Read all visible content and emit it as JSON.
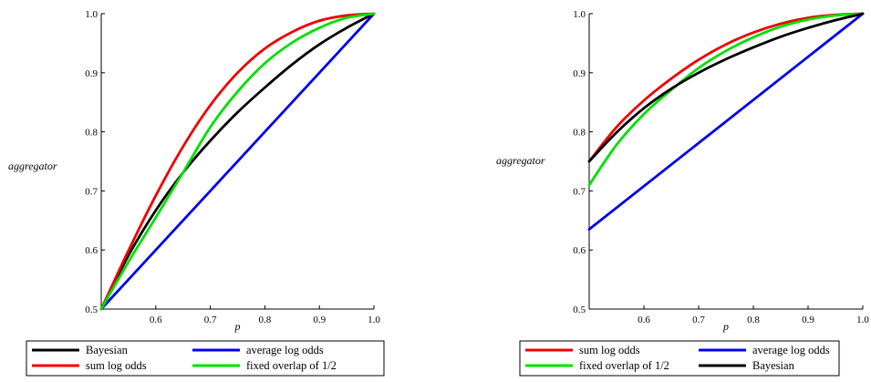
{
  "chart_data": [
    {
      "type": "line",
      "title": "",
      "xlabel": "p",
      "ylabel": "aggregator",
      "xlim": [
        0.5,
        1.0
      ],
      "ylim": [
        0.5,
        1.0
      ],
      "x_ticks": [
        "0.6",
        "0.7",
        "0.8",
        "0.9",
        "1.0"
      ],
      "y_ticks": [
        "0.5",
        "0.6",
        "0.7",
        "0.8",
        "0.9",
        "1.0"
      ],
      "grid": false,
      "legend_position": "bottom",
      "series": [
        {
          "name": "Bayesian",
          "color": "#000000",
          "x": [
            0.5,
            0.55,
            0.6,
            0.65,
            0.7,
            0.75,
            0.8,
            0.85,
            0.9,
            0.95,
            1.0
          ],
          "y": [
            0.5,
            0.591,
            0.667,
            0.731,
            0.785,
            0.833,
            0.875,
            0.914,
            0.948,
            0.976,
            1.0
          ]
        },
        {
          "name": "average log odds",
          "color": "#0000ee",
          "x": [
            0.5,
            0.6,
            0.7,
            0.8,
            0.9,
            1.0
          ],
          "y": [
            0.5,
            0.6,
            0.7,
            0.8,
            0.9,
            1.0
          ]
        },
        {
          "name": "sum log odds",
          "color": "#ee0000",
          "x": [
            0.5,
            0.55,
            0.6,
            0.65,
            0.7,
            0.75,
            0.8,
            0.85,
            0.9,
            0.95,
            1.0
          ],
          "y": [
            0.5,
            0.599,
            0.692,
            0.775,
            0.845,
            0.9,
            0.941,
            0.969,
            0.988,
            0.997,
            1.0
          ]
        },
        {
          "name": "fixed overlap of 1/2",
          "color": "#00e000",
          "x": [
            0.5,
            0.55,
            0.6,
            0.65,
            0.7,
            0.75,
            0.8,
            0.85,
            0.9,
            0.95,
            1.0
          ],
          "y": [
            0.5,
            0.58,
            0.655,
            0.731,
            0.808,
            0.868,
            0.916,
            0.951,
            0.976,
            0.993,
            1.0
          ]
        }
      ],
      "legend": [
        [
          "Bayesian",
          "average log odds"
        ],
        [
          "sum log odds",
          "fixed overlap of 1/2"
        ]
      ]
    },
    {
      "type": "line",
      "title": "",
      "xlabel": "p",
      "ylabel": "aggregator",
      "xlim": [
        0.5,
        1.0
      ],
      "ylim": [
        0.5,
        1.0
      ],
      "x_ticks": [
        "0.6",
        "0.7",
        "0.8",
        "0.9",
        "1.0"
      ],
      "y_ticks": [
        "0.5",
        "0.6",
        "0.7",
        "0.8",
        "0.9",
        "1.0"
      ],
      "grid": false,
      "legend_position": "bottom",
      "series": [
        {
          "name": "sum log odds",
          "color": "#ee0000",
          "x": [
            0.5,
            0.55,
            0.6,
            0.65,
            0.7,
            0.75,
            0.8,
            0.85,
            0.9,
            0.95,
            1.0
          ],
          "y": [
            0.75,
            0.808,
            0.853,
            0.89,
            0.922,
            0.948,
            0.968,
            0.983,
            0.993,
            0.998,
            1.0
          ]
        },
        {
          "name": "average log odds",
          "color": "#0000ee",
          "x": [
            0.5,
            1.0
          ],
          "y": [
            0.635,
            1.0
          ]
        },
        {
          "name": "fixed overlap of 1/2",
          "color": "#00e000",
          "x": [
            0.5,
            0.55,
            0.6,
            0.65,
            0.7,
            0.75,
            0.8,
            0.85,
            0.9,
            0.95,
            1.0
          ],
          "y": [
            0.71,
            0.778,
            0.83,
            0.871,
            0.908,
            0.937,
            0.96,
            0.978,
            0.99,
            0.997,
            1.0
          ]
        },
        {
          "name": "Bayesian",
          "color": "#000000",
          "x": [
            0.5,
            0.55,
            0.6,
            0.65,
            0.7,
            0.75,
            0.8,
            0.85,
            0.9,
            0.95,
            1.0
          ],
          "y": [
            0.75,
            0.799,
            0.84,
            0.873,
            0.9,
            0.923,
            0.943,
            0.961,
            0.976,
            0.989,
            1.0
          ]
        }
      ],
      "legend": [
        [
          "sum log odds",
          "average log odds"
        ],
        [
          "fixed overlap of 1/2",
          "Bayesian"
        ]
      ]
    }
  ]
}
